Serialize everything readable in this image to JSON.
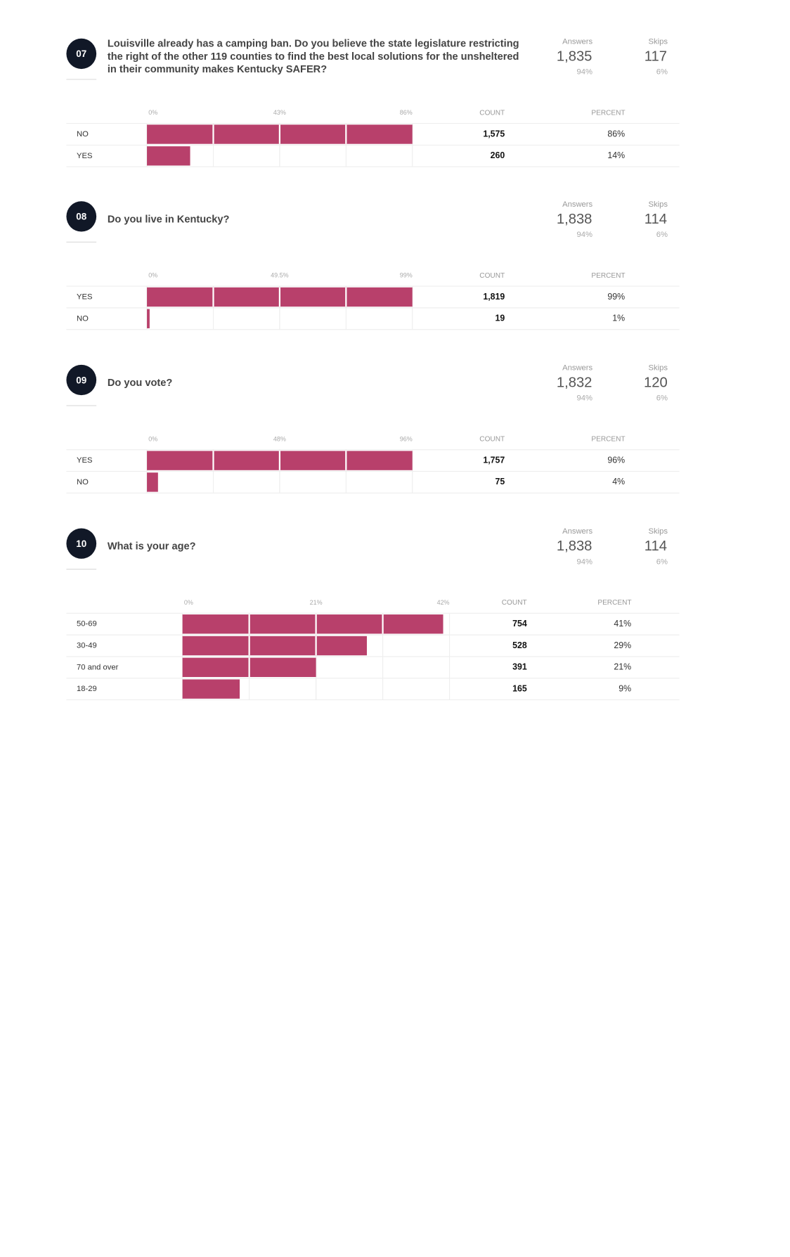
{
  "labels": {
    "answers": "Answers",
    "skips": "Skips",
    "count": "COUNT",
    "percent": "PERCENT"
  },
  "questions": [
    {
      "number": "07",
      "text_lines": [
        "Louisville already has a camping ban. Do you believe the state legislature restricting",
        "the right of the other 119 counties to find the best local solutions for the unsheltered",
        "in their community makes Kentucky SAFER?"
      ],
      "answers": {
        "count": "1,835",
        "percent": "94%"
      },
      "skips": {
        "count": "117",
        "percent": "6%"
      },
      "chart_data": {
        "type": "bar",
        "orientation": "horizontal",
        "categories": [
          "NO",
          "YES"
        ],
        "counts": [
          "1,575",
          "260"
        ],
        "values": [
          86,
          14
        ],
        "value_labels": [
          "86%",
          "14%"
        ],
        "color": "#b8406b",
        "xlim": [
          0,
          86
        ],
        "xticks": [
          {
            "value": 0,
            "label": "0%"
          },
          {
            "value": 43,
            "label": "43%"
          },
          {
            "value": 86,
            "label": "86%"
          }
        ]
      }
    },
    {
      "number": "08",
      "text_lines": [
        "Do you live in Kentucky?"
      ],
      "answers": {
        "count": "1,838",
        "percent": "94%"
      },
      "skips": {
        "count": "114",
        "percent": "6%"
      },
      "chart_data": {
        "type": "bar",
        "orientation": "horizontal",
        "categories": [
          "YES",
          "NO"
        ],
        "counts": [
          "1,819",
          "19"
        ],
        "values": [
          99,
          1
        ],
        "value_labels": [
          "99%",
          "1%"
        ],
        "color": "#b8406b",
        "xlim": [
          0,
          99
        ],
        "xticks": [
          {
            "value": 0,
            "label": "0%"
          },
          {
            "value": 49.5,
            "label": "49.5%"
          },
          {
            "value": 99,
            "label": "99%"
          }
        ]
      }
    },
    {
      "number": "09",
      "text_lines": [
        "Do you vote?"
      ],
      "answers": {
        "count": "1,832",
        "percent": "94%"
      },
      "skips": {
        "count": "120",
        "percent": "6%"
      },
      "chart_data": {
        "type": "bar",
        "orientation": "horizontal",
        "categories": [
          "YES",
          "NO"
        ],
        "counts": [
          "1,757",
          "75"
        ],
        "values": [
          96,
          4
        ],
        "value_labels": [
          "96%",
          "4%"
        ],
        "color": "#b8406b",
        "xlim": [
          0,
          96
        ],
        "xticks": [
          {
            "value": 0,
            "label": "0%"
          },
          {
            "value": 48,
            "label": "48%"
          },
          {
            "value": 96,
            "label": "96%"
          }
        ]
      }
    },
    {
      "number": "10",
      "text_lines": [
        "What is your age?"
      ],
      "answers": {
        "count": "1,838",
        "percent": "94%"
      },
      "skips": {
        "count": "114",
        "percent": "6%"
      },
      "chart_data": {
        "type": "bar",
        "orientation": "horizontal",
        "categories": [
          "50-69",
          "30-49",
          "70 and over",
          "18-29"
        ],
        "counts": [
          "754",
          "528",
          "391",
          "165"
        ],
        "values": [
          41,
          29,
          21,
          9
        ],
        "value_labels": [
          "41%",
          "29%",
          "21%",
          "9%"
        ],
        "color": "#b8406b",
        "xlim": [
          0,
          42
        ],
        "xticks": [
          {
            "value": 0,
            "label": "0%"
          },
          {
            "value": 21,
            "label": "21%"
          },
          {
            "value": 42,
            "label": "42%"
          }
        ]
      }
    }
  ]
}
